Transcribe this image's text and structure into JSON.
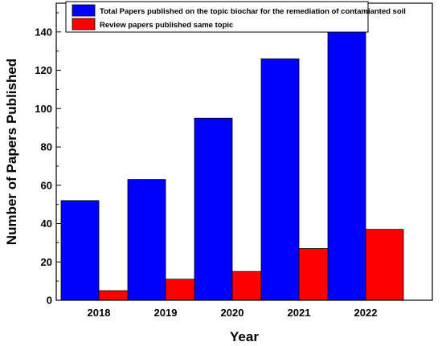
{
  "chart_data": {
    "type": "bar",
    "xlabel": "Year",
    "ylabel": "Number of Papers Published",
    "categories": [
      "2018",
      "2019",
      "2020",
      "2021",
      "2022"
    ],
    "ylim": [
      0,
      155
    ],
    "yticks": [
      0,
      20,
      40,
      60,
      80,
      100,
      120,
      140
    ],
    "grid": false,
    "legend_position": "top",
    "series": [
      {
        "name": "Total Papers published on the topic biochar for the remediation of contamianted soil",
        "color": "#0000ff",
        "values": [
          52,
          63,
          95,
          126,
          145
        ]
      },
      {
        "name": "Review papers published same topic",
        "color": "#ff0000",
        "values": [
          5,
          11,
          15,
          27,
          37
        ]
      }
    ]
  }
}
